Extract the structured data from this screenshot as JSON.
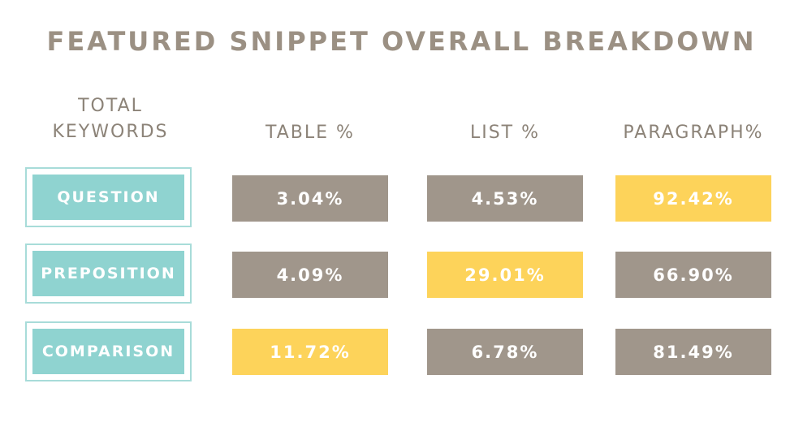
{
  "title": "FEATURED SNIPPET OVERALL BREAKDOWN",
  "table": {
    "headers": [
      "TOTAL KEYWORDS",
      "TABLE %",
      "LIST %",
      "PARAGRAPH%"
    ],
    "rows": [
      [
        "QUESTION",
        "3.04%",
        "4.53%",
        "92.42%"
      ],
      [
        "PREPOSITION",
        "4.09%",
        "29.01%",
        "66.90%"
      ],
      [
        "COMPARISON",
        "11.72%",
        "6.78%",
        "81.49%"
      ]
    ]
  }
}
